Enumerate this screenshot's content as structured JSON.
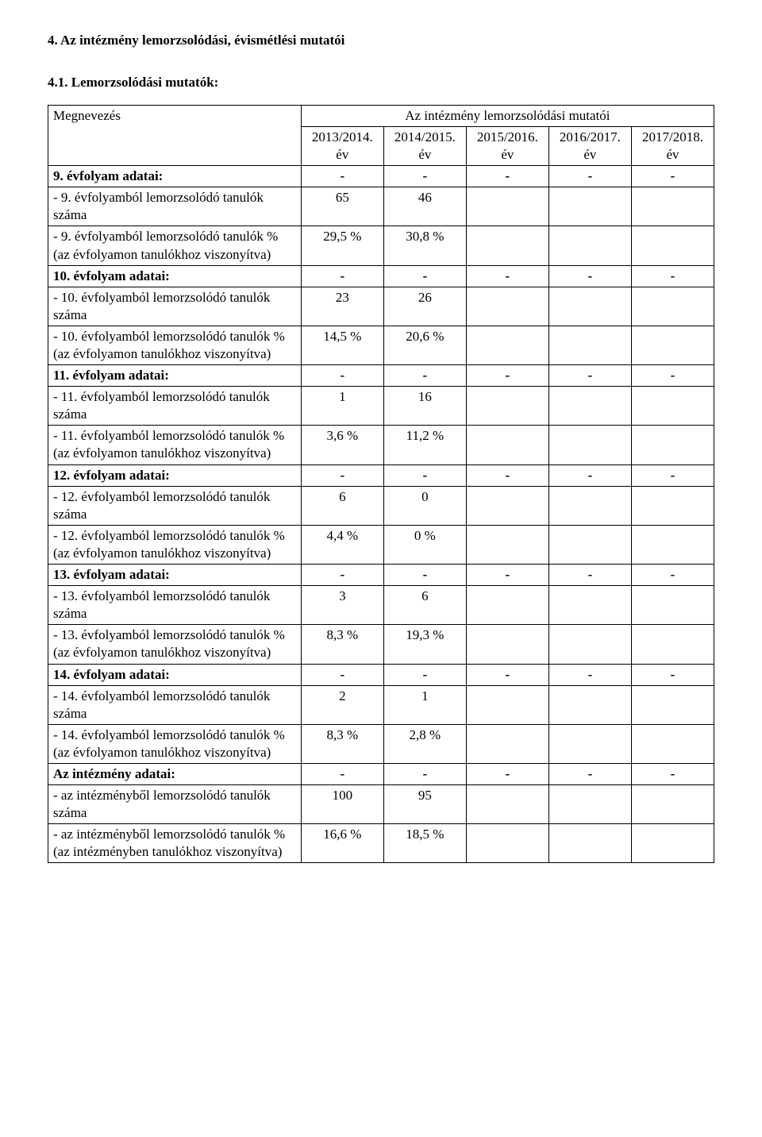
{
  "section_title": "4. Az intézmény lemorzsolódási, évismétlési mutatói",
  "subsection_title": "4.1. Lemorzsolódási mutatók:",
  "table": {
    "label_header": "Megnevezés",
    "merged_header": "Az intézmény lemorzsolódási mutatói",
    "years": [
      {
        "top": "2013/2014.",
        "bottom": "év"
      },
      {
        "top": "2014/2015.",
        "bottom": "év"
      },
      {
        "top": "2015/2016.",
        "bottom": "év"
      },
      {
        "top": "2016/2017.",
        "bottom": "év"
      },
      {
        "top": "2017/2018.",
        "bottom": "év"
      }
    ],
    "groups": [
      {
        "header": {
          "label": "9. évfolyam adatai:",
          "v": [
            "-",
            "-",
            "-",
            "-",
            "-"
          ]
        },
        "count": {
          "label": "- 9. évfolyamból lemorzsolódó tanulók száma",
          "v": [
            "65",
            "46",
            "",
            "",
            ""
          ]
        },
        "pct": {
          "label": "- 9. évfolyamból lemorzsolódó tanulók % (az évfolyamon tanulókhoz viszonyítva)",
          "v": [
            "29,5 %",
            "30,8 %",
            "",
            "",
            ""
          ]
        }
      },
      {
        "header": {
          "label": "10. évfolyam adatai:",
          "v": [
            "-",
            "-",
            "-",
            "-",
            "-"
          ]
        },
        "count": {
          "label": "- 10. évfolyamból lemorzsolódó tanulók száma",
          "v": [
            "23",
            "26",
            "",
            "",
            ""
          ]
        },
        "pct": {
          "label": "- 10. évfolyamból lemorzsolódó tanulók % (az évfolyamon tanulókhoz viszonyítva)",
          "v": [
            "14,5 %",
            "20,6 %",
            "",
            "",
            ""
          ]
        }
      },
      {
        "header": {
          "label": "11. évfolyam adatai:",
          "v": [
            "-",
            "-",
            "-",
            "-",
            "-"
          ]
        },
        "count": {
          "label": "- 11. évfolyamból lemorzsolódó tanulók száma",
          "v": [
            "1",
            "16",
            "",
            "",
            ""
          ]
        },
        "pct": {
          "label": "- 11. évfolyamból lemorzsolódó tanulók % (az évfolyamon tanulókhoz viszonyítva)",
          "v": [
            "3,6 %",
            "11,2 %",
            "",
            "",
            ""
          ]
        }
      },
      {
        "header": {
          "label": "12. évfolyam adatai:",
          "v": [
            "-",
            "-",
            "-",
            "-",
            "-"
          ]
        },
        "count": {
          "label": "- 12. évfolyamból lemorzsolódó tanulók száma",
          "v": [
            "6",
            "0",
            "",
            "",
            ""
          ]
        },
        "pct": {
          "label": "- 12. évfolyamból lemorzsolódó tanulók % (az évfolyamon tanulókhoz viszonyítva)",
          "v": [
            "4,4 %",
            "0 %",
            "",
            "",
            ""
          ]
        }
      },
      {
        "header": {
          "label": "13. évfolyam adatai:",
          "v": [
            "-",
            "-",
            "-",
            "-",
            "-"
          ]
        },
        "count": {
          "label": "- 13. évfolyamból lemorzsolódó tanulók száma",
          "v": [
            "3",
            "6",
            "",
            "",
            ""
          ]
        },
        "pct": {
          "label": "- 13. évfolyamból lemorzsolódó tanulók % (az évfolyamon tanulókhoz viszonyítva)",
          "v": [
            "8,3 %",
            "19,3 %",
            "",
            "",
            ""
          ]
        }
      },
      {
        "header": {
          "label": "14. évfolyam adatai:",
          "v": [
            "-",
            "-",
            "-",
            "-",
            "-"
          ]
        },
        "count": {
          "label": "- 14. évfolyamból lemorzsolódó tanulók száma",
          "v": [
            "2",
            "1",
            "",
            "",
            ""
          ]
        },
        "pct": {
          "label": "- 14. évfolyamból lemorzsolódó tanulók % (az évfolyamon tanulókhoz viszonyítva)",
          "v": [
            "8,3 %",
            "2,8 %",
            "",
            "",
            ""
          ]
        }
      }
    ],
    "institution": {
      "header": {
        "label": "Az intézmény adatai:",
        "v": [
          "-",
          "-",
          "-",
          "-",
          "-"
        ]
      },
      "count": {
        "label": "- az intézményből lemorzsolódó tanulók száma",
        "v": [
          "100",
          "95",
          "",
          "",
          ""
        ]
      },
      "pct": {
        "label": "- az intézményből lemorzsolódó tanulók % (az intézményben tanulókhoz viszonyítva)",
        "v": [
          "16,6 %",
          "18,5 %",
          "",
          "",
          ""
        ]
      }
    }
  }
}
